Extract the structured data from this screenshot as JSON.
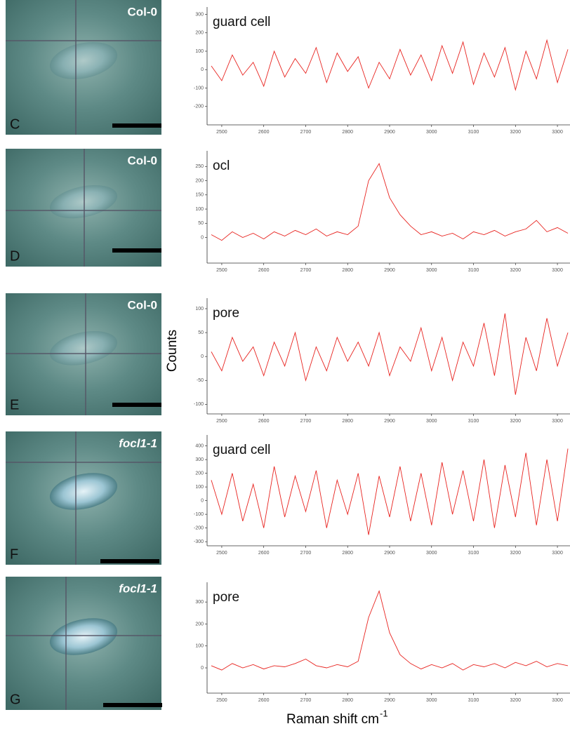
{
  "chart_data": [
    {
      "type": "line",
      "panel": "C",
      "genotype": "Col-0",
      "genotype_italic": false,
      "annotation": "guard cell",
      "color": "#e8231f",
      "x": [
        2475,
        2500,
        2525,
        2550,
        2575,
        2600,
        2625,
        2650,
        2675,
        2700,
        2725,
        2750,
        2775,
        2800,
        2825,
        2850,
        2875,
        2900,
        2925,
        2950,
        2975,
        3000,
        3025,
        3050,
        3075,
        3100,
        3125,
        3150,
        3175,
        3200,
        3225,
        3250,
        3275,
        3300,
        3325
      ],
      "values": [
        20,
        -60,
        80,
        -30,
        40,
        -90,
        100,
        -40,
        60,
        -20,
        120,
        -70,
        90,
        -10,
        70,
        -100,
        40,
        -50,
        110,
        -30,
        80,
        -60,
        130,
        -20,
        150,
        -80,
        90,
        -40,
        120,
        -110,
        100,
        -50,
        160,
        -70,
        110
      ],
      "xlim": [
        2465,
        3330
      ],
      "ylim": [
        -300,
        340
      ],
      "xticks": [
        2500,
        2600,
        2700,
        2800,
        2900,
        3000,
        3100,
        3200,
        3300
      ],
      "yticks": [
        -200,
        -100,
        0,
        100,
        200,
        300
      ]
    },
    {
      "type": "line",
      "panel": "D",
      "genotype": "Col-0",
      "genotype_italic": false,
      "annotation": "ocl",
      "color": "#e8231f",
      "x": [
        2475,
        2500,
        2525,
        2550,
        2575,
        2600,
        2625,
        2650,
        2675,
        2700,
        2725,
        2750,
        2775,
        2800,
        2825,
        2850,
        2875,
        2900,
        2925,
        2950,
        2975,
        3000,
        3025,
        3050,
        3075,
        3100,
        3125,
        3150,
        3175,
        3200,
        3225,
        3250,
        3275,
        3300,
        3325
      ],
      "values": [
        10,
        -10,
        20,
        0,
        15,
        -5,
        20,
        5,
        25,
        10,
        30,
        5,
        20,
        10,
        40,
        200,
        260,
        140,
        80,
        40,
        10,
        20,
        5,
        15,
        -5,
        20,
        10,
        25,
        5,
        20,
        30,
        60,
        20,
        35,
        15
      ],
      "xlim": [
        2465,
        3330
      ],
      "ylim": [
        -90,
        305
      ],
      "xticks": [
        2500,
        2600,
        2700,
        2800,
        2900,
        3000,
        3100,
        3200,
        3300
      ],
      "yticks": [
        0,
        50,
        100,
        150,
        200,
        250
      ]
    },
    {
      "type": "line",
      "panel": "E",
      "genotype": "Col-0",
      "genotype_italic": false,
      "annotation": "pore",
      "color": "#e8231f",
      "x": [
        2475,
        2500,
        2525,
        2550,
        2575,
        2600,
        2625,
        2650,
        2675,
        2700,
        2725,
        2750,
        2775,
        2800,
        2825,
        2850,
        2875,
        2900,
        2925,
        2950,
        2975,
        3000,
        3025,
        3050,
        3075,
        3100,
        3125,
        3150,
        3175,
        3200,
        3225,
        3250,
        3275,
        3300,
        3325
      ],
      "values": [
        10,
        -30,
        40,
        -10,
        20,
        -40,
        30,
        -20,
        50,
        -50,
        20,
        -30,
        40,
        -10,
        30,
        -20,
        50,
        -40,
        20,
        -10,
        60,
        -30,
        40,
        -50,
        30,
        -20,
        70,
        -40,
        90,
        -80,
        40,
        -30,
        80,
        -20,
        50
      ],
      "xlim": [
        2465,
        3330
      ],
      "ylim": [
        -120,
        122
      ],
      "xticks": [
        2500,
        2600,
        2700,
        2800,
        2900,
        3000,
        3100,
        3200,
        3300
      ],
      "yticks": [
        -100,
        -50,
        0,
        50,
        100
      ]
    },
    {
      "type": "line",
      "panel": "F",
      "genotype": "focl1-1",
      "genotype_italic": true,
      "annotation": "guard cell",
      "color": "#e8231f",
      "x": [
        2475,
        2500,
        2525,
        2550,
        2575,
        2600,
        2625,
        2650,
        2675,
        2700,
        2725,
        2750,
        2775,
        2800,
        2825,
        2850,
        2875,
        2900,
        2925,
        2950,
        2975,
        3000,
        3025,
        3050,
        3075,
        3100,
        3125,
        3150,
        3175,
        3200,
        3225,
        3250,
        3275,
        3300,
        3325
      ],
      "values": [
        150,
        -100,
        200,
        -150,
        120,
        -200,
        250,
        -120,
        180,
        -80,
        220,
        -200,
        150,
        -100,
        200,
        -250,
        180,
        -120,
        250,
        -150,
        200,
        -180,
        280,
        -100,
        220,
        -150,
        300,
        -200,
        260,
        -120,
        350,
        -180,
        300,
        -150,
        380
      ],
      "xlim": [
        2465,
        3330
      ],
      "ylim": [
        -330,
        480
      ],
      "xticks": [
        2500,
        2600,
        2700,
        2800,
        2900,
        3000,
        3100,
        3200,
        3300
      ],
      "yticks": [
        -300,
        -200,
        -100,
        0,
        100,
        200,
        300,
        400
      ]
    },
    {
      "type": "line",
      "panel": "G",
      "genotype": "focl1-1",
      "genotype_italic": true,
      "annotation": "pore",
      "color": "#e8231f",
      "x": [
        2475,
        2500,
        2525,
        2550,
        2575,
        2600,
        2625,
        2650,
        2675,
        2700,
        2725,
        2750,
        2775,
        2800,
        2825,
        2850,
        2875,
        2900,
        2925,
        2950,
        2975,
        3000,
        3025,
        3050,
        3075,
        3100,
        3125,
        3150,
        3175,
        3200,
        3225,
        3250,
        3275,
        3300,
        3325
      ],
      "values": [
        10,
        -10,
        20,
        0,
        15,
        -5,
        10,
        5,
        20,
        40,
        10,
        0,
        15,
        5,
        30,
        230,
        350,
        160,
        60,
        20,
        -5,
        15,
        0,
        20,
        -10,
        15,
        5,
        20,
        0,
        25,
        10,
        30,
        5,
        20,
        10
      ],
      "xlim": [
        2465,
        3330
      ],
      "ylim": [
        -115,
        390
      ],
      "xticks": [
        2500,
        2600,
        2700,
        2800,
        2900,
        3000,
        3100,
        3200,
        3300
      ],
      "yticks": [
        0,
        100,
        200,
        300
      ]
    }
  ],
  "y_label": "Counts",
  "x_label": {
    "text": "Raman shift cm",
    "superscript": "-1"
  }
}
